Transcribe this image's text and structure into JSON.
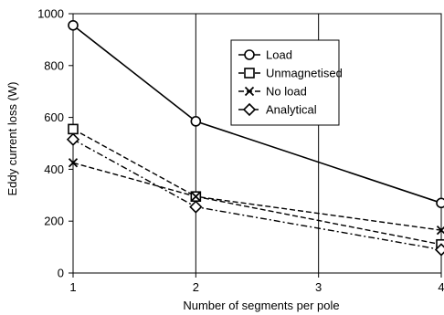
{
  "chart_data": {
    "type": "line",
    "xlabel": "Number of segments per pole",
    "ylabel": "Eddy current loss (W)",
    "x": [
      1,
      2,
      4
    ],
    "xlim": [
      1,
      4
    ],
    "ylim": [
      0,
      1000
    ],
    "xticks": [
      "1",
      "2",
      "3",
      "4"
    ],
    "yticks": [
      "0",
      "200",
      "400",
      "600",
      "800",
      "1000"
    ],
    "grid": "vertical",
    "legend_position": "top-right",
    "series": [
      {
        "name": "Load",
        "marker": "circle",
        "dash": "solid",
        "values": [
          955,
          585,
          270
        ]
      },
      {
        "name": "Unmagnetised",
        "marker": "square",
        "dash": "dashed",
        "values": [
          555,
          295,
          110
        ]
      },
      {
        "name": "No load",
        "marker": "x",
        "dash": "dashed",
        "values": [
          425,
          295,
          165
        ]
      },
      {
        "name": "Analytical",
        "marker": "diamond",
        "dash": "dashdot",
        "values": [
          515,
          255,
          90
        ]
      }
    ]
  }
}
